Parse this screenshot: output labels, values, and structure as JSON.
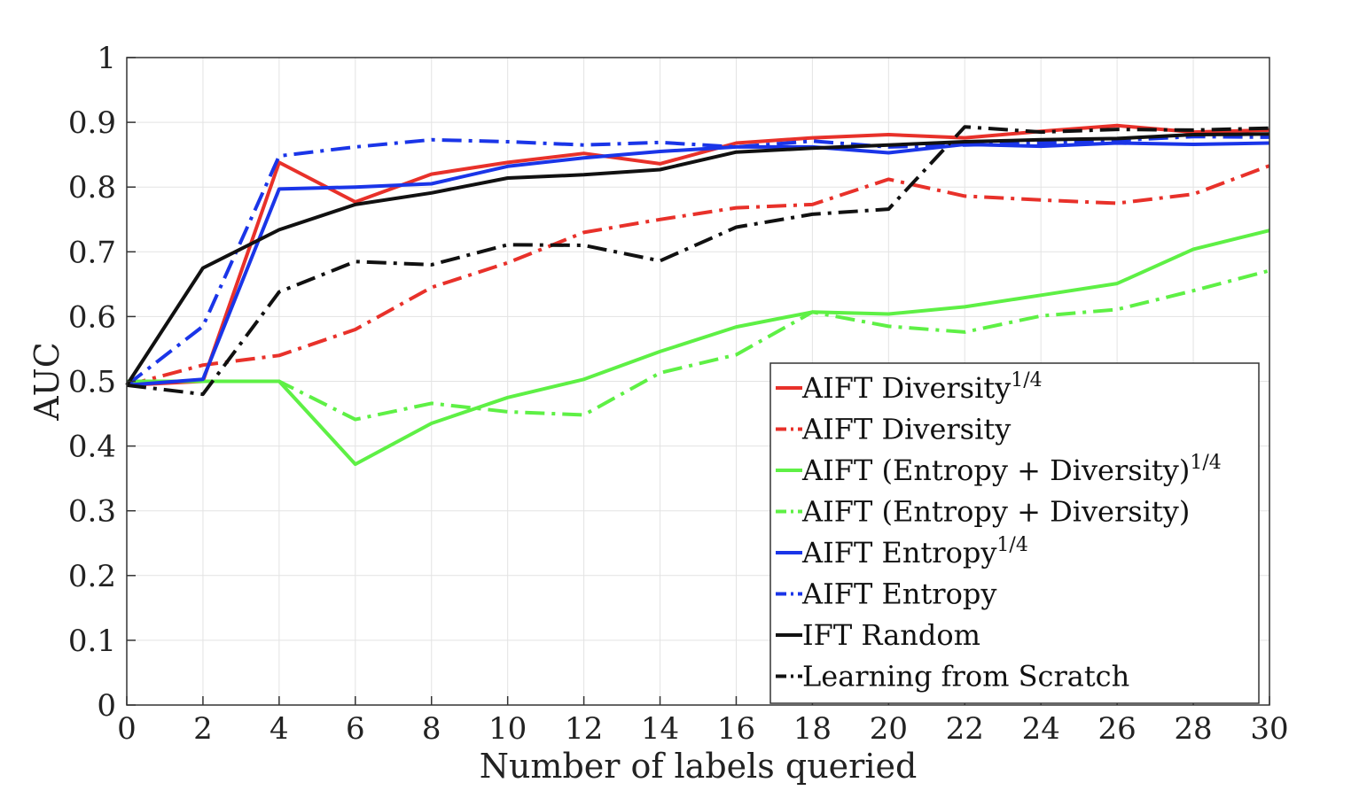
{
  "chart_data": {
    "type": "line",
    "title": "",
    "xlabel": "Number of labels queried",
    "ylabel": "AUC",
    "xlim": [
      0,
      30
    ],
    "ylim": [
      0,
      1
    ],
    "x_ticks": [
      0,
      2,
      4,
      6,
      8,
      10,
      12,
      14,
      16,
      18,
      20,
      22,
      24,
      26,
      28,
      30
    ],
    "y_ticks": [
      0,
      0.1,
      0.2,
      0.3,
      0.4,
      0.5,
      0.6,
      0.7,
      0.8,
      0.9,
      1
    ],
    "y_tick_labels": [
      "0",
      "0.1",
      "0.2",
      "0.3",
      "0.4",
      "0.5",
      "0.6",
      "0.7",
      "0.8",
      "0.9",
      "1"
    ],
    "grid": true,
    "legend_position": "bottom-right",
    "x": [
      0,
      2,
      4,
      6,
      8,
      10,
      12,
      14,
      16,
      18,
      20,
      22,
      24,
      26,
      28,
      30
    ],
    "series": [
      {
        "name": "AIFT Diversity",
        "sup": "1/4",
        "color": "#e8312a",
        "dash": "solid",
        "values": [
          0.494,
          0.5,
          0.838,
          0.777,
          0.82,
          0.838,
          0.852,
          0.836,
          0.868,
          0.876,
          0.881,
          0.876,
          0.886,
          0.895,
          0.885,
          0.888
        ]
      },
      {
        "name": "AIFT Diversity",
        "sup": "",
        "color": "#e8312a",
        "dash": "dashdot",
        "values": [
          0.494,
          0.525,
          0.54,
          0.58,
          0.645,
          0.683,
          0.73,
          0.75,
          0.768,
          0.773,
          0.812,
          0.786,
          0.78,
          0.775,
          0.789,
          0.833
        ]
      },
      {
        "name": "AIFT (Entropy + Diversity)",
        "sup": "1/4",
        "color": "#5ef045",
        "dash": "solid",
        "values": [
          0.5,
          0.5,
          0.5,
          0.372,
          0.435,
          0.475,
          0.503,
          0.546,
          0.584,
          0.607,
          0.604,
          0.615,
          0.633,
          0.651,
          0.704,
          0.733
        ]
      },
      {
        "name": "AIFT (Entropy + Diversity)",
        "sup": "",
        "color": "#5ef045",
        "dash": "dashdot",
        "values": [
          0.5,
          0.5,
          0.5,
          0.441,
          0.466,
          0.453,
          0.448,
          0.513,
          0.541,
          0.607,
          0.585,
          0.576,
          0.601,
          0.611,
          0.64,
          0.671
        ]
      },
      {
        "name": "AIFT Entropy",
        "sup": "1/4",
        "color": "#1a35e8",
        "dash": "solid",
        "values": [
          0.494,
          0.503,
          0.797,
          0.8,
          0.805,
          0.832,
          0.845,
          0.855,
          0.862,
          0.862,
          0.853,
          0.866,
          0.863,
          0.868,
          0.866,
          0.868
        ]
      },
      {
        "name": "AIFT Entropy",
        "sup": "",
        "color": "#1a35e8",
        "dash": "dashdot",
        "values": [
          0.494,
          0.585,
          0.848,
          0.862,
          0.873,
          0.87,
          0.865,
          0.869,
          0.862,
          0.871,
          0.862,
          0.865,
          0.868,
          0.872,
          0.878,
          0.877
        ]
      },
      {
        "name": "IFT Random",
        "sup": "",
        "color": "#111111",
        "dash": "solid",
        "values": [
          0.494,
          0.675,
          0.734,
          0.773,
          0.791,
          0.814,
          0.819,
          0.827,
          0.854,
          0.86,
          0.865,
          0.87,
          0.873,
          0.875,
          0.881,
          0.882
        ]
      },
      {
        "name": "Learning from Scratch",
        "sup": "",
        "color": "#111111",
        "dash": "dashdot",
        "values": [
          0.494,
          0.48,
          0.638,
          0.685,
          0.68,
          0.711,
          0.71,
          0.686,
          0.738,
          0.758,
          0.766,
          0.893,
          0.885,
          0.889,
          0.888,
          0.891
        ]
      }
    ]
  }
}
